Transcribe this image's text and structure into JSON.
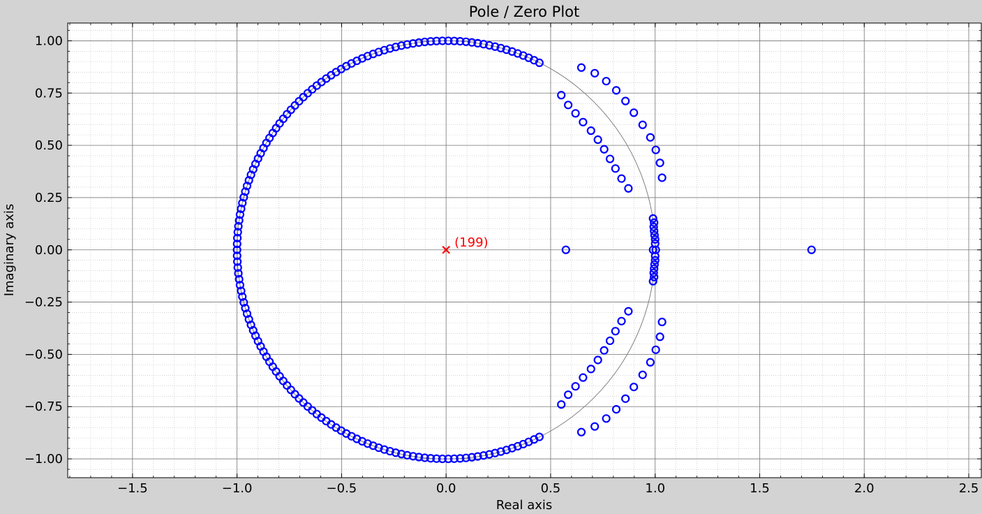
{
  "chart_data": {
    "type": "scatter",
    "title": "Pole / Zero Plot",
    "xlabel": "Real axis",
    "ylabel": "Imaginary axis",
    "xlim": [
      -1.81,
      2.56
    ],
    "ylim": [
      -1.09,
      1.085
    ],
    "x_ticks": [
      -1.5,
      -1.0,
      -0.5,
      0.0,
      0.5,
      1.0,
      1.5,
      2.0,
      2.5
    ],
    "x_tick_labels": [
      "−1.5",
      "−1.0",
      "−0.5",
      "0.0",
      "0.5",
      "1.0",
      "1.5",
      "2.0",
      "2.5"
    ],
    "y_ticks": [
      1.0,
      0.75,
      0.5,
      0.25,
      0.0,
      -0.25,
      -0.5,
      -0.75,
      -1.0
    ],
    "y_tick_labels": [
      "1.00",
      "0.75",
      "0.50",
      "0.25",
      "0.00",
      "−0.25",
      "−0.50",
      "−0.75",
      "−1.00"
    ],
    "grid": true,
    "minor_grid": true,
    "unit_circle": true,
    "colors": {
      "zeros": "#0000ff",
      "poles": "#ff0000",
      "unit_circle": "#808080"
    },
    "poles": [
      {
        "x": 0.0,
        "y": 0.0,
        "multiplicity_label": "(199)"
      }
    ],
    "zero_groups": {
      "unit_circle_arc": {
        "angle_start_deg": 63.5,
        "angle_end_deg": 296.5,
        "count": 145
      },
      "cluster_near_one": [
        [
          0.99,
          0.15
        ],
        [
          0.995,
          0.13
        ],
        [
          0.993,
          0.11
        ],
        [
          0.995,
          0.09
        ],
        [
          0.997,
          0.07
        ],
        [
          1.0,
          0.05
        ],
        [
          1.0,
          0.03
        ],
        [
          1.003,
          0.0
        ],
        [
          0.99,
          0.0
        ],
        [
          1.0,
          -0.03
        ],
        [
          1.0,
          -0.05
        ],
        [
          0.997,
          -0.07
        ],
        [
          0.995,
          -0.09
        ],
        [
          0.993,
          -0.11
        ],
        [
          0.995,
          -0.13
        ],
        [
          0.99,
          -0.15
        ]
      ],
      "outer_arc_upper": [
        [
          0.647,
          0.872
        ],
        [
          0.711,
          0.845
        ],
        [
          0.766,
          0.807
        ],
        [
          0.814,
          0.763
        ],
        [
          0.858,
          0.712
        ],
        [
          0.898,
          0.656
        ],
        [
          0.94,
          0.598
        ],
        [
          0.977,
          0.538
        ],
        [
          1.003,
          0.478
        ],
        [
          1.023,
          0.416
        ],
        [
          1.033,
          0.345
        ]
      ],
      "inner_arc_upper": [
        [
          0.551,
          0.74
        ],
        [
          0.584,
          0.693
        ],
        [
          0.619,
          0.653
        ],
        [
          0.655,
          0.611
        ],
        [
          0.693,
          0.57
        ],
        [
          0.726,
          0.527
        ],
        [
          0.756,
          0.481
        ],
        [
          0.784,
          0.435
        ],
        [
          0.81,
          0.389
        ],
        [
          0.839,
          0.341
        ],
        [
          0.872,
          0.294
        ]
      ],
      "outer_arc_lower": [
        [
          0.647,
          -0.872
        ],
        [
          0.711,
          -0.845
        ],
        [
          0.766,
          -0.807
        ],
        [
          0.814,
          -0.763
        ],
        [
          0.858,
          -0.712
        ],
        [
          0.898,
          -0.656
        ],
        [
          0.94,
          -0.598
        ],
        [
          0.977,
          -0.538
        ],
        [
          1.003,
          -0.478
        ],
        [
          1.023,
          -0.416
        ],
        [
          1.033,
          -0.345
        ]
      ],
      "inner_arc_lower": [
        [
          0.551,
          -0.74
        ],
        [
          0.584,
          -0.693
        ],
        [
          0.619,
          -0.653
        ],
        [
          0.655,
          -0.611
        ],
        [
          0.693,
          -0.57
        ],
        [
          0.726,
          -0.527
        ],
        [
          0.756,
          -0.481
        ],
        [
          0.784,
          -0.435
        ],
        [
          0.81,
          -0.389
        ],
        [
          0.839,
          -0.341
        ],
        [
          0.872,
          -0.294
        ]
      ],
      "real_axis": [
        [
          0.573,
          0.0
        ],
        [
          1.748,
          0.0
        ]
      ]
    }
  }
}
